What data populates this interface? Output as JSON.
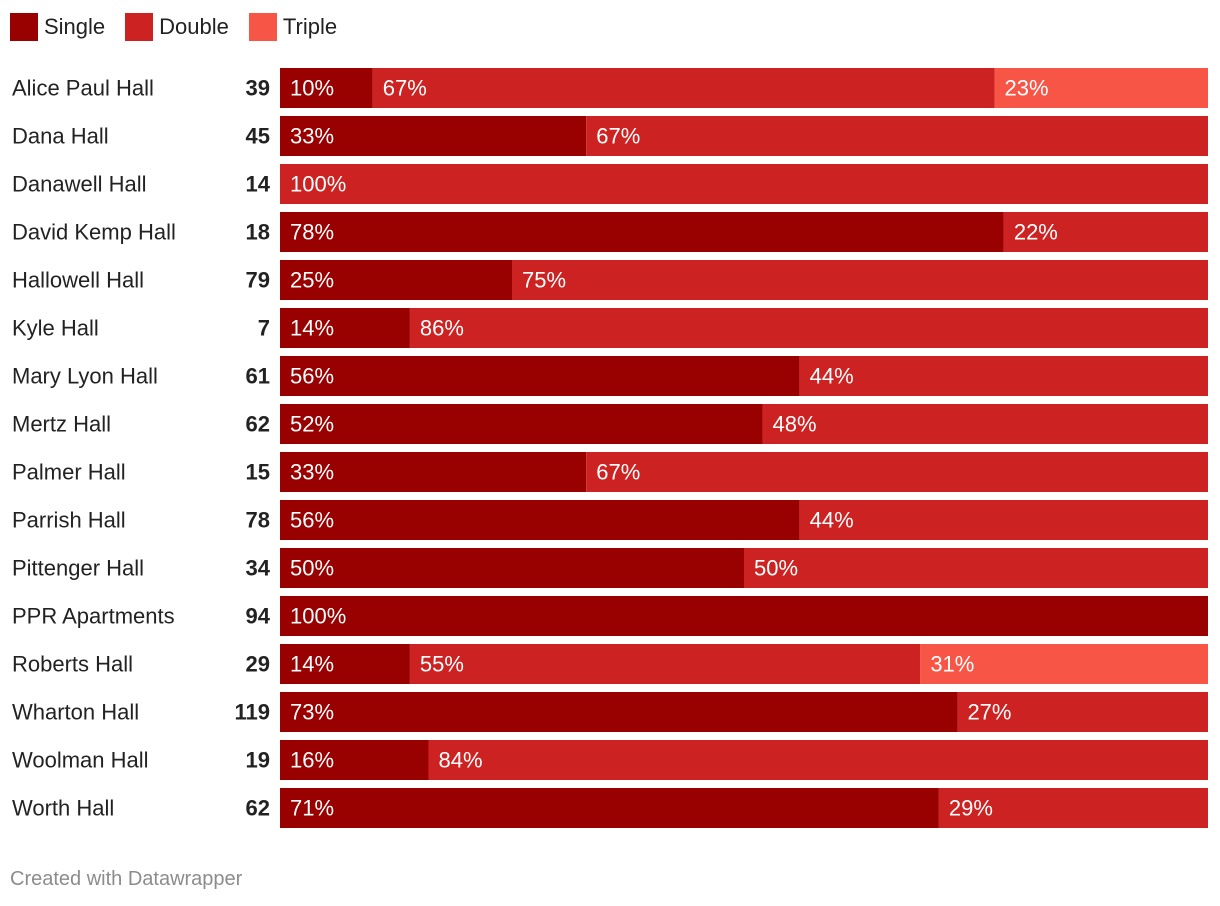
{
  "chart_data": {
    "type": "stacked-bar-100",
    "legend": [
      {
        "name": "Single",
        "color": "#990000"
      },
      {
        "name": "Double",
        "color": "#cc2222"
      },
      {
        "name": "Triple",
        "color": "#f75546"
      }
    ],
    "rows": [
      {
        "label": "Alice Paul Hall",
        "total": "39",
        "values": [
          10,
          67,
          23
        ]
      },
      {
        "label": "Dana Hall",
        "total": "45",
        "values": [
          33,
          67,
          0
        ]
      },
      {
        "label": "Danawell Hall",
        "total": "14",
        "values": [
          0,
          100,
          0
        ]
      },
      {
        "label": "David Kemp Hall",
        "total": "18",
        "values": [
          78,
          22,
          0
        ]
      },
      {
        "label": "Hallowell Hall",
        "total": "79",
        "values": [
          25,
          75,
          0
        ]
      },
      {
        "label": "Kyle Hall",
        "total": "7",
        "values": [
          14,
          86,
          0
        ]
      },
      {
        "label": "Mary Lyon Hall",
        "total": "61",
        "values": [
          56,
          44,
          0
        ]
      },
      {
        "label": "Mertz Hall",
        "total": "62",
        "values": [
          52,
          48,
          0
        ]
      },
      {
        "label": "Palmer Hall",
        "total": "15",
        "values": [
          33,
          67,
          0
        ]
      },
      {
        "label": "Parrish Hall",
        "total": "78",
        "values": [
          56,
          44,
          0
        ]
      },
      {
        "label": "Pittenger Hall",
        "total": "34",
        "values": [
          50,
          50,
          0
        ]
      },
      {
        "label": "PPR Apartments",
        "total": "94",
        "values": [
          100,
          0,
          0
        ]
      },
      {
        "label": "Roberts Hall",
        "total": "29",
        "values": [
          14,
          55,
          31
        ]
      },
      {
        "label": "Wharton Hall",
        "total": "119",
        "values": [
          73,
          27,
          0
        ]
      },
      {
        "label": "Woolman Hall",
        "total": "19",
        "values": [
          16,
          84,
          0
        ]
      },
      {
        "label": "Worth Hall",
        "total": "62",
        "values": [
          71,
          29,
          0
        ]
      }
    ],
    "value_suffix": "%"
  },
  "legend_labels": {
    "single": "Single",
    "double": "Double",
    "triple": "Triple"
  },
  "colors": {
    "single": "#990000",
    "double": "#cc2222",
    "triple": "#f75546",
    "text": "#222222",
    "footer": "#8c8c8c"
  },
  "footer": {
    "credit": "Created with Datawrapper"
  }
}
